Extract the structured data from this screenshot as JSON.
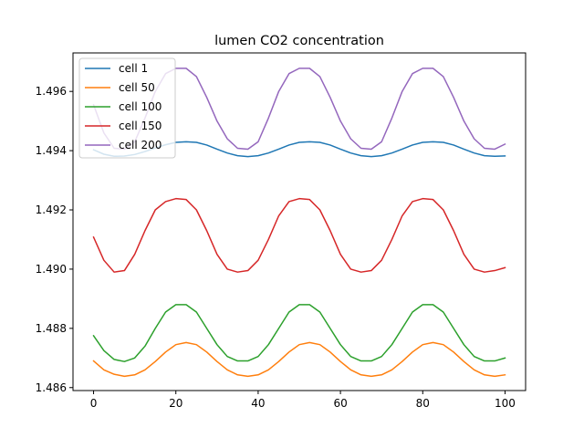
{
  "chart_data": {
    "type": "line",
    "title": "lumen CO2 concentration",
    "xlabel": "",
    "ylabel": "",
    "xlim": [
      -5,
      105
    ],
    "ylim": [
      1.4859,
      1.4973
    ],
    "xticks": [
      0,
      20,
      40,
      60,
      80,
      100
    ],
    "yticks": [
      1.486,
      1.488,
      1.49,
      1.492,
      1.494,
      1.496
    ],
    "xtick_labels": [
      "0",
      "20",
      "40",
      "60",
      "80",
      "100"
    ],
    "ytick_labels": [
      "1.486",
      "1.488",
      "1.490",
      "1.492",
      "1.494",
      "1.496"
    ],
    "grid": false,
    "legend_position": "top-left",
    "x": [
      0,
      2.5,
      5,
      7.5,
      10,
      12.5,
      15,
      17.5,
      20,
      22.5,
      25,
      27.5,
      30,
      32.5,
      35,
      37.5,
      40,
      42.5,
      45,
      47.5,
      50,
      52.5,
      55,
      57.5,
      60,
      62.5,
      65,
      67.5,
      70,
      72.5,
      75,
      77.5,
      80,
      82.5,
      85,
      87.5,
      90,
      92.5,
      95,
      97.5,
      100
    ],
    "series": [
      {
        "name": "cell 1",
        "color": "#1f77b4",
        "values": [
          1.49403,
          1.49388,
          1.49381,
          1.49382,
          1.49387,
          1.49397,
          1.49409,
          1.4942,
          1.49428,
          1.4943,
          1.49428,
          1.49419,
          1.49405,
          1.49392,
          1.49383,
          1.4938,
          1.49383,
          1.49392,
          1.49405,
          1.49419,
          1.49428,
          1.4943,
          1.49428,
          1.49419,
          1.49405,
          1.49392,
          1.49383,
          1.4938,
          1.49383,
          1.49392,
          1.49405,
          1.49419,
          1.49428,
          1.4943,
          1.49428,
          1.49419,
          1.49405,
          1.49392,
          1.49383,
          1.49381,
          1.49382
        ]
      },
      {
        "name": "cell 50",
        "color": "#ff7f0e",
        "values": [
          1.4869,
          1.4866,
          1.48645,
          1.48638,
          1.48643,
          1.4866,
          1.48688,
          1.4872,
          1.48745,
          1.48752,
          1.48745,
          1.4872,
          1.48688,
          1.4866,
          1.48643,
          1.48638,
          1.48643,
          1.4866,
          1.48688,
          1.4872,
          1.48745,
          1.48752,
          1.48745,
          1.4872,
          1.48688,
          1.4866,
          1.48643,
          1.48638,
          1.48643,
          1.4866,
          1.48688,
          1.4872,
          1.48745,
          1.48752,
          1.48745,
          1.4872,
          1.48688,
          1.4866,
          1.48643,
          1.48638,
          1.48643
        ]
      },
      {
        "name": "cell 100",
        "color": "#2ca02c",
        "values": [
          1.48775,
          1.48725,
          1.48695,
          1.48688,
          1.487,
          1.4874,
          1.488,
          1.48855,
          1.4888,
          1.4888,
          1.48855,
          1.488,
          1.48745,
          1.48705,
          1.4869,
          1.4869,
          1.48705,
          1.48745,
          1.488,
          1.48855,
          1.4888,
          1.4888,
          1.48855,
          1.488,
          1.48745,
          1.48705,
          1.4869,
          1.4869,
          1.48705,
          1.48745,
          1.488,
          1.48855,
          1.4888,
          1.4888,
          1.48855,
          1.488,
          1.48745,
          1.48705,
          1.4869,
          1.4869,
          1.487
        ]
      },
      {
        "name": "cell 150",
        "color": "#d62728",
        "values": [
          1.49108,
          1.4903,
          1.4899,
          1.48995,
          1.4905,
          1.4913,
          1.492,
          1.49228,
          1.49238,
          1.49235,
          1.492,
          1.4913,
          1.4905,
          1.49,
          1.4899,
          1.48995,
          1.4903,
          1.491,
          1.4918,
          1.49228,
          1.49238,
          1.49235,
          1.492,
          1.4913,
          1.4905,
          1.49,
          1.4899,
          1.48995,
          1.4903,
          1.491,
          1.4918,
          1.49228,
          1.49238,
          1.49235,
          1.492,
          1.4913,
          1.4905,
          1.49,
          1.4899,
          1.48995,
          1.49005
        ]
      },
      {
        "name": "cell 200",
        "color": "#9467bd",
        "values": [
          1.49555,
          1.4946,
          1.49408,
          1.49405,
          1.4943,
          1.4951,
          1.496,
          1.4966,
          1.49678,
          1.49678,
          1.4965,
          1.4958,
          1.495,
          1.4944,
          1.49408,
          1.49405,
          1.4943,
          1.4951,
          1.496,
          1.4966,
          1.49678,
          1.49678,
          1.4965,
          1.4958,
          1.495,
          1.4944,
          1.49408,
          1.49405,
          1.4943,
          1.4951,
          1.496,
          1.4966,
          1.49678,
          1.49678,
          1.4965,
          1.4958,
          1.495,
          1.4944,
          1.49408,
          1.49405,
          1.49422
        ]
      }
    ]
  }
}
